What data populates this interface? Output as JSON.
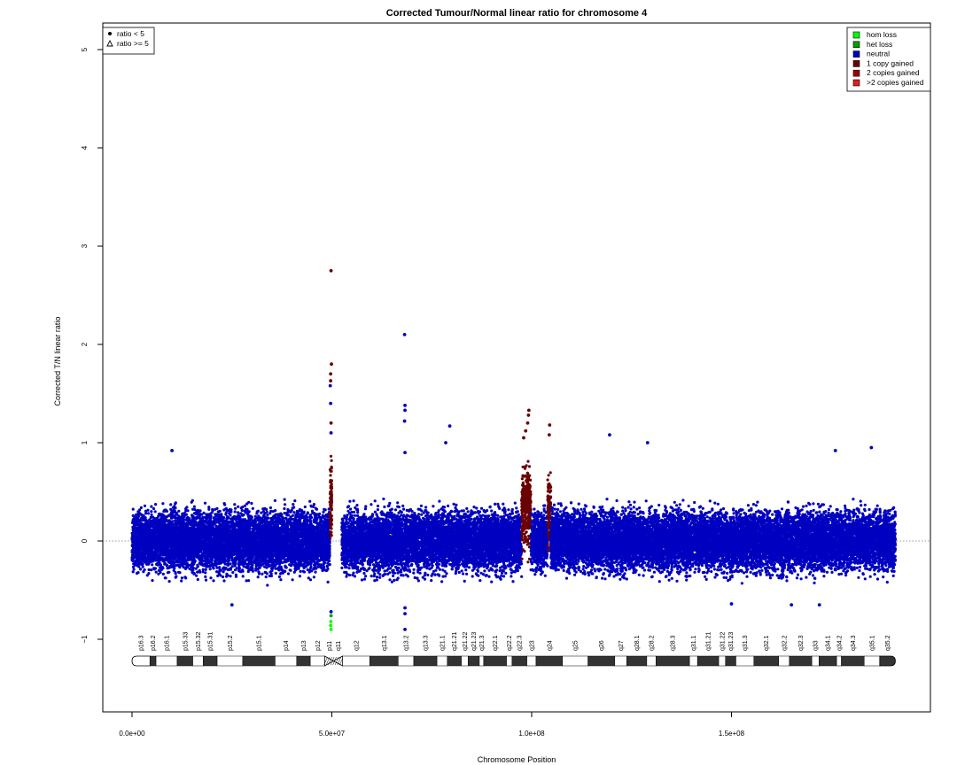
{
  "chart_data": {
    "type": "scatter",
    "title": "Corrected Tumour/Normal linear ratio for chromosome  4",
    "xlabel": "Chromosome Position",
    "ylabel": "Corrected T/N linear ratio",
    "xlim": [
      0,
      200000000
    ],
    "ylim": [
      -1.8,
      5.2
    ],
    "x_ticks": [
      0,
      50000000,
      100000000,
      150000000
    ],
    "x_tick_labels": [
      "0.0e+00",
      "5.0e+07",
      "1.0e+08",
      "1.5e+08"
    ],
    "y_ticks": [
      -1,
      0,
      1,
      2,
      3,
      4,
      5
    ],
    "y_tick_labels": [
      "−1",
      "0",
      "1",
      "2",
      "3",
      "4",
      "5"
    ],
    "reference_line_y": 0,
    "shape_legend": [
      {
        "label": "ratio < 5",
        "marker": "filled-circle"
      },
      {
        "label": "ratio >= 5",
        "marker": "open-triangle"
      }
    ],
    "state_legend": [
      {
        "label": "hom loss",
        "color": "#00ff00"
      },
      {
        "label": "het loss",
        "color": "#00a000"
      },
      {
        "label": "neutral",
        "color": "#0000c0"
      },
      {
        "label": "1 copy gained",
        "color": "#6a0000"
      },
      {
        "label": "2 copies gained",
        "color": "#a00000"
      },
      {
        "label": ">2 copies gained",
        "color": "#e02020"
      }
    ],
    "segments": [
      {
        "state": "neutral",
        "x_start": 0,
        "x_end": 49500000,
        "y_mean": 0,
        "y_spread": 0.42
      },
      {
        "state": "1 copy gained",
        "x_start": 49500000,
        "x_end": 50000000,
        "y_mean": 0.4,
        "y_spread": 0.5
      },
      {
        "state": "neutral",
        "x_start": 52500000,
        "x_end": 97500000,
        "y_mean": 0,
        "y_spread": 0.42
      },
      {
        "state": "1 copy gained",
        "x_start": 97500000,
        "x_end": 99800000,
        "y_mean": 0.35,
        "y_spread": 0.55
      },
      {
        "state": "neutral",
        "x_start": 99800000,
        "x_end": 104000000,
        "y_mean": 0,
        "y_spread": 0.42
      },
      {
        "state": "1 copy gained",
        "x_start": 104000000,
        "x_end": 104800000,
        "y_mean": 0.3,
        "y_spread": 0.5
      },
      {
        "state": "neutral",
        "x_start": 104800000,
        "x_end": 191000000,
        "y_mean": 0,
        "y_spread": 0.42
      }
    ],
    "outliers": [
      {
        "x": 49800000,
        "y": 2.75,
        "state": "1 copy gained"
      },
      {
        "x": 49900000,
        "y": 1.8,
        "state": "1 copy gained"
      },
      {
        "x": 49700000,
        "y": 1.7,
        "state": "1 copy gained"
      },
      {
        "x": 49700000,
        "y": 1.63,
        "state": "1 copy gained"
      },
      {
        "x": 49600000,
        "y": 1.58,
        "state": "neutral"
      },
      {
        "x": 49700000,
        "y": 1.4,
        "state": "neutral"
      },
      {
        "x": 49800000,
        "y": 1.2,
        "state": "1 copy gained"
      },
      {
        "x": 49800000,
        "y": 1.1,
        "state": "neutral"
      },
      {
        "x": 49800000,
        "y": -0.72,
        "state": "neutral"
      },
      {
        "x": 49800000,
        "y": -0.76,
        "state": "het loss"
      },
      {
        "x": 49750000,
        "y": -0.82,
        "state": "hom loss"
      },
      {
        "x": 49700000,
        "y": -0.86,
        "state": "hom loss"
      },
      {
        "x": 49800000,
        "y": -0.9,
        "state": "hom loss"
      },
      {
        "x": 68200000,
        "y": 2.1,
        "state": "neutral"
      },
      {
        "x": 68300000,
        "y": 1.38,
        "state": "neutral"
      },
      {
        "x": 68300000,
        "y": 1.33,
        "state": "neutral"
      },
      {
        "x": 68200000,
        "y": 1.22,
        "state": "neutral"
      },
      {
        "x": 68300000,
        "y": 0.9,
        "state": "neutral"
      },
      {
        "x": 68300000,
        "y": -0.68,
        "state": "neutral"
      },
      {
        "x": 68300000,
        "y": -0.74,
        "state": "neutral"
      },
      {
        "x": 68300000,
        "y": -0.9,
        "state": "neutral"
      },
      {
        "x": 99300000,
        "y": 1.33,
        "state": "1 copy gained"
      },
      {
        "x": 99200000,
        "y": 1.28,
        "state": "1 copy gained"
      },
      {
        "x": 99000000,
        "y": 1.2,
        "state": "1 copy gained"
      },
      {
        "x": 98500000,
        "y": 1.12,
        "state": "1 copy gained"
      },
      {
        "x": 98000000,
        "y": 1.05,
        "state": "1 copy gained"
      },
      {
        "x": 104500000,
        "y": 1.18,
        "state": "1 copy gained"
      },
      {
        "x": 104400000,
        "y": 1.08,
        "state": "1 copy gained"
      },
      {
        "x": 79500000,
        "y": 1.17,
        "state": "neutral"
      },
      {
        "x": 78500000,
        "y": 1.0,
        "state": "neutral"
      },
      {
        "x": 119500000,
        "y": 1.08,
        "state": "neutral"
      },
      {
        "x": 129000000,
        "y": 1.0,
        "state": "neutral"
      },
      {
        "x": 10000000,
        "y": 0.92,
        "state": "neutral"
      },
      {
        "x": 185000000,
        "y": 0.95,
        "state": "neutral"
      },
      {
        "x": 176000000,
        "y": 0.92,
        "state": "neutral"
      },
      {
        "x": 165000000,
        "y": -0.65,
        "state": "neutral"
      },
      {
        "x": 172000000,
        "y": -0.65,
        "state": "neutral"
      },
      {
        "x": 150000000,
        "y": -0.64,
        "state": "neutral"
      },
      {
        "x": 25000000,
        "y": -0.65,
        "state": "neutral"
      }
    ],
    "ideogram": {
      "bands": [
        {
          "name": "p16.3",
          "start": 0,
          "end": 4500000,
          "stain": "gneg"
        },
        {
          "name": "p16.2",
          "start": 4500000,
          "end": 6000000,
          "stain": "gpos"
        },
        {
          "name": "p16.1",
          "start": 6000000,
          "end": 11300000,
          "stain": "gneg"
        },
        {
          "name": "p15.33",
          "start": 11300000,
          "end": 15200000,
          "stain": "gpos"
        },
        {
          "name": "p15.32",
          "start": 15200000,
          "end": 17800000,
          "stain": "gneg"
        },
        {
          "name": "p15.31",
          "start": 17800000,
          "end": 21300000,
          "stain": "gpos"
        },
        {
          "name": "p15.2",
          "start": 21300000,
          "end": 27700000,
          "stain": "gneg"
        },
        {
          "name": "p15.1",
          "start": 27700000,
          "end": 35800000,
          "stain": "gpos"
        },
        {
          "name": "p14",
          "start": 35800000,
          "end": 41200000,
          "stain": "gneg"
        },
        {
          "name": "p13",
          "start": 41200000,
          "end": 44600000,
          "stain": "gpos"
        },
        {
          "name": "p12",
          "start": 44600000,
          "end": 48200000,
          "stain": "gneg"
        },
        {
          "name": "p11",
          "start": 48200000,
          "end": 50400000,
          "stain": "acen"
        },
        {
          "name": "q11",
          "start": 50400000,
          "end": 52700000,
          "stain": "acen"
        },
        {
          "name": "q12",
          "start": 52700000,
          "end": 59500000,
          "stain": "gneg"
        },
        {
          "name": "q13.1",
          "start": 59500000,
          "end": 66600000,
          "stain": "gpos"
        },
        {
          "name": "q13.2",
          "start": 66600000,
          "end": 70500000,
          "stain": "gneg"
        },
        {
          "name": "q13.3",
          "start": 70500000,
          "end": 76300000,
          "stain": "gpos"
        },
        {
          "name": "q21.1",
          "start": 76300000,
          "end": 78900000,
          "stain": "gneg"
        },
        {
          "name": "q21.21",
          "start": 78900000,
          "end": 82400000,
          "stain": "gpos"
        },
        {
          "name": "q21.22",
          "start": 82400000,
          "end": 84100000,
          "stain": "gneg"
        },
        {
          "name": "q21.23",
          "start": 84100000,
          "end": 86900000,
          "stain": "gpos"
        },
        {
          "name": "q21.3",
          "start": 86900000,
          "end": 88000000,
          "stain": "gneg"
        },
        {
          "name": "q22.1",
          "start": 88000000,
          "end": 93700000,
          "stain": "gpos"
        },
        {
          "name": "q22.2",
          "start": 93700000,
          "end": 95100000,
          "stain": "gneg"
        },
        {
          "name": "q22.3",
          "start": 95100000,
          "end": 98800000,
          "stain": "gpos"
        },
        {
          "name": "q23",
          "start": 98800000,
          "end": 101100000,
          "stain": "gneg"
        },
        {
          "name": "q24",
          "start": 101100000,
          "end": 107700000,
          "stain": "gpos"
        },
        {
          "name": "q25",
          "start": 107700000,
          "end": 114100000,
          "stain": "gneg"
        },
        {
          "name": "q26",
          "start": 114100000,
          "end": 120800000,
          "stain": "gpos"
        },
        {
          "name": "q27",
          "start": 120800000,
          "end": 123800000,
          "stain": "gneg"
        },
        {
          "name": "q28.1",
          "start": 123800000,
          "end": 128800000,
          "stain": "gpos"
        },
        {
          "name": "q28.2",
          "start": 128800000,
          "end": 131100000,
          "stain": "gneg"
        },
        {
          "name": "q28.3",
          "start": 131100000,
          "end": 139500000,
          "stain": "gpos"
        },
        {
          "name": "q31.1",
          "start": 139500000,
          "end": 141500000,
          "stain": "gneg"
        },
        {
          "name": "q31.21",
          "start": 141500000,
          "end": 146800000,
          "stain": "gpos"
        },
        {
          "name": "q31.22",
          "start": 146800000,
          "end": 148500000,
          "stain": "gneg"
        },
        {
          "name": "q31.23",
          "start": 148500000,
          "end": 151100000,
          "stain": "gpos"
        },
        {
          "name": "q31.3",
          "start": 151100000,
          "end": 155600000,
          "stain": "gneg"
        },
        {
          "name": "q32.1",
          "start": 155600000,
          "end": 161800000,
          "stain": "gpos"
        },
        {
          "name": "q32.2",
          "start": 161800000,
          "end": 164500000,
          "stain": "gneg"
        },
        {
          "name": "q32.3",
          "start": 164500000,
          "end": 170100000,
          "stain": "gpos"
        },
        {
          "name": "q33",
          "start": 170100000,
          "end": 171900000,
          "stain": "gneg"
        },
        {
          "name": "q34.1",
          "start": 171900000,
          "end": 176300000,
          "stain": "gpos"
        },
        {
          "name": "q34.2",
          "start": 176300000,
          "end": 177500000,
          "stain": "gneg"
        },
        {
          "name": "q34.3",
          "start": 177500000,
          "end": 183200000,
          "stain": "gpos"
        },
        {
          "name": "q35.1",
          "start": 183200000,
          "end": 187100000,
          "stain": "gneg"
        },
        {
          "name": "q35.2",
          "start": 187100000,
          "end": 191000000,
          "stain": "gpos"
        }
      ]
    }
  }
}
